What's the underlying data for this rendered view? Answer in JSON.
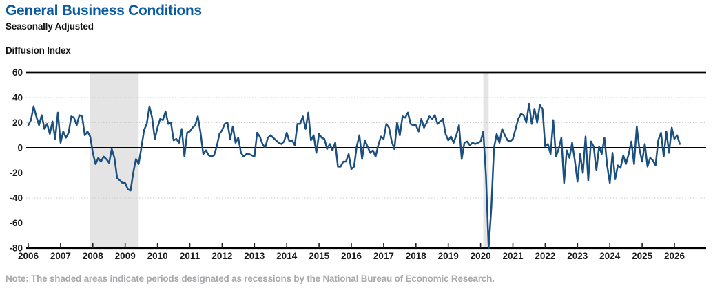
{
  "header": {
    "title": "General Business Conditions",
    "subtitle": "Seasonally Adjusted"
  },
  "note": "Note: The shaded areas indicate periods designated as recessions by the National Bureau of Economic Research.",
  "colors": {
    "title_blue": "#0a5aa0",
    "line_navy": "#1a4f80",
    "recession_band_gray": "#e4e4e4",
    "gridline_gray": "#c8c8c8",
    "axis_black": "#000000",
    "note_gray": "#a7a9ac",
    "tick_label": "#1a1a1a"
  },
  "chart_data": {
    "type": "line",
    "title": "General Business Conditions",
    "subtitle": "Seasonally Adjusted",
    "ylabel": "Diffusion Index",
    "ylim": [
      -80,
      60
    ],
    "y_ticks": [
      60,
      40,
      20,
      0,
      -20,
      -40,
      -60,
      -80
    ],
    "x_tick_years": [
      2006,
      2007,
      2008,
      2009,
      2010,
      2011,
      2012,
      2013,
      2014,
      2015,
      2016,
      2017,
      2018,
      2019,
      2020,
      2021,
      2022,
      2023,
      2024,
      2025,
      2026
    ],
    "frequency": "monthly",
    "start": "2006-01",
    "end": "2026-03",
    "grid": "horizontal-dotted",
    "legend_position": "none",
    "zero_line": true,
    "recessions": [
      {
        "start": "2007-12",
        "end": "2009-06"
      },
      {
        "start": "2020-02",
        "end": "2020-04"
      }
    ],
    "values": [
      18,
      22,
      33,
      25,
      18,
      26,
      15,
      19,
      11,
      21,
      7,
      28,
      4,
      13,
      8,
      12,
      25,
      24,
      18,
      26,
      25,
      10,
      13,
      9,
      -4,
      -13,
      -8,
      -11,
      -7,
      -9,
      -12,
      -1,
      -8,
      -24,
      -26,
      -28,
      -28,
      -33,
      -34,
      -20,
      -9,
      -13,
      0,
      14,
      19,
      33,
      24,
      7,
      16,
      23,
      22,
      29,
      19,
      20,
      6,
      7,
      4,
      15,
      -7,
      12,
      13,
      16,
      18,
      25,
      12,
      -5,
      -2,
      -6,
      -7,
      -6,
      1,
      11,
      14,
      19,
      20,
      7,
      17,
      4,
      8,
      -4,
      -7,
      -5,
      -5,
      -6,
      -7,
      12,
      9,
      3,
      0,
      8,
      10,
      8,
      6,
      4,
      3,
      5,
      12,
      5,
      6,
      2,
      19,
      19,
      25,
      15,
      28,
      6,
      10,
      -4,
      11,
      8,
      7,
      -1,
      3,
      -2,
      4,
      -15,
      -15,
      -11,
      -11,
      -5,
      -17,
      -15,
      1,
      10,
      -9,
      6,
      1,
      -4,
      -2,
      -7,
      2,
      9,
      7,
      19,
      16,
      5,
      -1,
      20,
      10,
      25,
      24,
      28,
      19,
      18,
      18,
      13,
      23,
      16,
      20,
      25,
      23,
      26,
      19,
      21,
      23,
      11,
      6,
      9,
      4,
      10,
      18,
      -9,
      4,
      5,
      2,
      4,
      3,
      4,
      5,
      13,
      -22,
      -80,
      -48,
      0,
      11,
      4,
      15,
      10,
      6,
      5,
      7,
      15,
      23,
      27,
      26,
      20,
      35,
      19,
      31,
      20,
      34,
      31,
      1,
      3,
      -5,
      22,
      -7,
      -1,
      8,
      -28,
      -2,
      -8,
      4,
      -10,
      -27,
      -5,
      -20,
      9,
      -26,
      5,
      1,
      -18,
      1,
      -5,
      8,
      -14,
      -28,
      -4,
      -25,
      -14,
      -16,
      -6,
      -13,
      -5,
      5,
      -13,
      17,
      -1,
      -11,
      3,
      -15,
      -8,
      -10,
      -14,
      6,
      12,
      -7,
      13,
      -4,
      16,
      7,
      10,
      3
    ]
  }
}
